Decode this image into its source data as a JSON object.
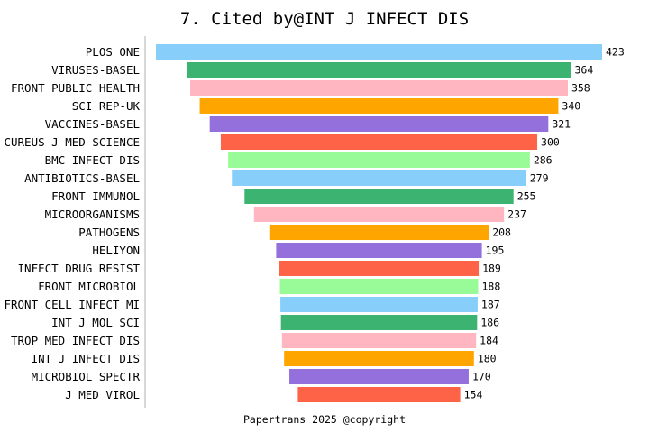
{
  "chart_data": {
    "type": "bar",
    "orientation": "horizontal-centered-funnel",
    "title": "7. Cited by@INT J INFECT DIS",
    "footer": "Papertrans 2025 @copyright",
    "categories": [
      "PLOS ONE",
      "VIRUSES-BASEL",
      "FRONT PUBLIC HEALTH",
      "SCI REP-UK",
      "VACCINES-BASEL",
      "CUREUS J MED SCIENCE",
      "BMC INFECT DIS",
      "ANTIBIOTICS-BASEL",
      "FRONT IMMUNOL",
      "MICROORGANISMS",
      "PATHOGENS",
      "HELIYON",
      "INFECT DRUG RESIST",
      "FRONT MICROBIOL",
      "FRONT CELL INFECT MI",
      "INT J MOL SCI",
      "TROP MED INFECT DIS",
      "INT J INFECT DIS",
      "MICROBIOL SPECTR",
      "J MED VIROL"
    ],
    "values": [
      423,
      364,
      358,
      340,
      321,
      300,
      286,
      279,
      255,
      237,
      208,
      195,
      189,
      188,
      187,
      186,
      184,
      180,
      170,
      154
    ],
    "colors": [
      "#87CEFA",
      "#3CB371",
      "#FFB6C1",
      "#FFA500",
      "#9370DB",
      "#FF6347",
      "#98FB98"
    ],
    "grid": false
  }
}
